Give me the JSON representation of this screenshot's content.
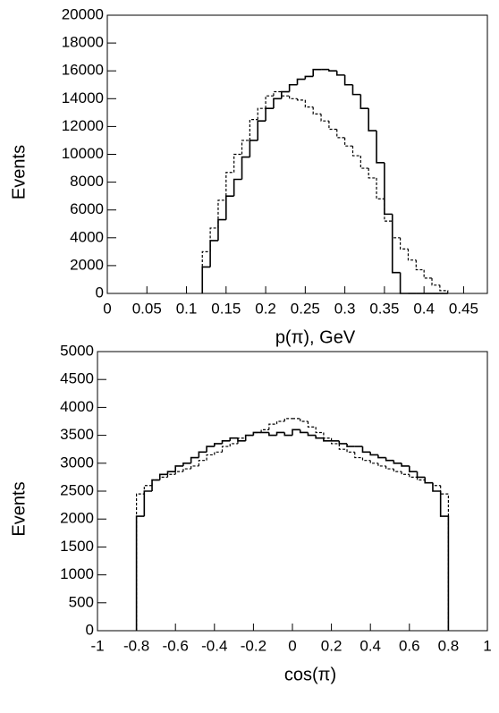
{
  "chart_data": [
    {
      "type": "histogram",
      "x_label": "p(π), GeV",
      "y_label": "Events",
      "xlim": [
        0,
        0.48
      ],
      "ylim": [
        0,
        20000
      ],
      "xticks": [
        0,
        0.05,
        0.1,
        0.15,
        0.2,
        0.25,
        0.3,
        0.35,
        0.4,
        0.45
      ],
      "yticks": [
        0,
        2000,
        4000,
        6000,
        8000,
        10000,
        12000,
        14000,
        16000,
        18000,
        20000
      ],
      "bins": [
        0.12,
        0.13,
        0.14,
        0.15,
        0.16,
        0.17,
        0.18,
        0.19,
        0.2,
        0.21,
        0.22,
        0.23,
        0.24,
        0.25,
        0.26,
        0.27,
        0.28,
        0.29,
        0.3,
        0.31,
        0.32,
        0.33,
        0.34,
        0.35,
        0.36,
        0.37,
        0.38,
        0.39,
        0.4,
        0.41,
        0.42,
        0.43
      ],
      "series": [
        {
          "color": "#000000",
          "line_style": "solid",
          "values": [
            1900,
            3800,
            5300,
            7000,
            8200,
            9800,
            11000,
            12400,
            13300,
            14000,
            14500,
            15000,
            15400,
            15600,
            16100,
            16100,
            16000,
            15700,
            15000,
            14300,
            13300,
            11700,
            9400,
            5700,
            1500,
            0,
            0,
            0,
            0,
            0,
            0
          ]
        },
        {
          "color": "#000000",
          "line_style": "dashed",
          "values": [
            3000,
            4700,
            6700,
            8700,
            10000,
            11000,
            12500,
            13300,
            14200,
            14500,
            14200,
            14000,
            13900,
            13400,
            12900,
            12400,
            11800,
            11200,
            10600,
            9900,
            9000,
            8300,
            6800,
            5200,
            4000,
            3200,
            2400,
            1700,
            1100,
            600,
            200
          ]
        }
      ]
    },
    {
      "type": "histogram",
      "x_label": "cos(π)",
      "y_label": "Events",
      "xlim": [
        -1,
        1
      ],
      "ylim": [
        0,
        5000
      ],
      "xticks": [
        -1,
        -0.8,
        -0.6,
        -0.4,
        -0.2,
        0,
        0.2,
        0.4,
        0.6,
        0.8,
        1
      ],
      "yticks": [
        0,
        500,
        1000,
        1500,
        2000,
        2500,
        3000,
        3500,
        4000,
        4500,
        5000
      ],
      "bins": [
        -0.8,
        -0.76,
        -0.72,
        -0.68,
        -0.64,
        -0.6,
        -0.56,
        -0.52,
        -0.48,
        -0.44,
        -0.4,
        -0.36,
        -0.32,
        -0.28,
        -0.24,
        -0.2,
        -0.16,
        -0.12,
        -0.08,
        -0.04,
        0,
        0.04,
        0.08,
        0.12,
        0.16,
        0.2,
        0.24,
        0.28,
        0.32,
        0.36,
        0.4,
        0.44,
        0.48,
        0.52,
        0.56,
        0.6,
        0.64,
        0.68,
        0.72,
        0.76,
        0.8
      ],
      "series": [
        {
          "color": "#000000",
          "line_style": "solid",
          "values": [
            2050,
            2500,
            2700,
            2800,
            2850,
            2950,
            3000,
            3100,
            3200,
            3300,
            3350,
            3400,
            3450,
            3400,
            3500,
            3550,
            3550,
            3500,
            3550,
            3500,
            3600,
            3550,
            3500,
            3450,
            3400,
            3400,
            3350,
            3300,
            3300,
            3200,
            3150,
            3100,
            3050,
            3000,
            2950,
            2850,
            2750,
            2650,
            2500,
            2050
          ]
        },
        {
          "color": "#000000",
          "line_style": "dashed",
          "values": [
            2450,
            2600,
            2700,
            2750,
            2800,
            2850,
            2900,
            2950,
            3050,
            3150,
            3200,
            3300,
            3350,
            3450,
            3500,
            3550,
            3600,
            3700,
            3750,
            3800,
            3800,
            3750,
            3650,
            3550,
            3450,
            3350,
            3250,
            3200,
            3100,
            3050,
            3000,
            2950,
            2900,
            2850,
            2800,
            2750,
            2700,
            2650,
            2600,
            2450
          ]
        }
      ]
    }
  ]
}
